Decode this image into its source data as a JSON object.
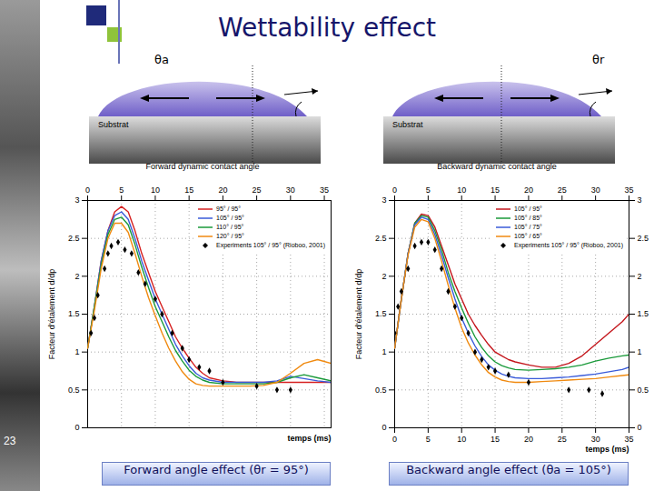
{
  "slide": {
    "title": "Wettability effect",
    "page_number": "23",
    "diagrams": [
      {
        "angle_label": "θa",
        "substrate": "Substrat",
        "caption": "Forward dynamic contact angle"
      },
      {
        "angle_label": "θr",
        "substrate": "Substrat",
        "caption": "Backward dynamic contact angle"
      }
    ]
  },
  "chart_data": [
    {
      "type": "line",
      "caption": "Forward angle effect  (θr = 95°)",
      "x_label": "temps (ms)",
      "y_label": "Facteur d'étalement d/dp",
      "xlim": [
        0,
        36
      ],
      "xticks": [
        0,
        5,
        10,
        15,
        20,
        25,
        30,
        35
      ],
      "ylim": [
        0,
        3
      ],
      "yticks": [
        0,
        0.5,
        1,
        1.5,
        2,
        2.5,
        3
      ],
      "grid": true,
      "legend": "upper right",
      "series": [
        {
          "name": "95° / 95°",
          "color": "#d62020",
          "type": "line",
          "x": [
            0,
            1,
            2,
            3,
            4,
            5,
            6,
            7,
            8,
            9,
            10,
            11,
            12,
            13,
            14,
            15,
            16,
            17,
            18,
            20,
            22,
            24,
            26,
            28,
            30,
            32,
            34,
            36
          ],
          "values": [
            1.05,
            1.6,
            2.2,
            2.6,
            2.85,
            2.92,
            2.85,
            2.6,
            2.3,
            2.05,
            1.8,
            1.6,
            1.4,
            1.2,
            1.05,
            0.92,
            0.8,
            0.72,
            0.66,
            0.62,
            0.6,
            0.6,
            0.6,
            0.6,
            0.6,
            0.6,
            0.6,
            0.6
          ]
        },
        {
          "name": "105° / 95°",
          "color": "#3a5bd9",
          "type": "line",
          "x": [
            0,
            1,
            2,
            3,
            4,
            5,
            6,
            7,
            8,
            9,
            10,
            11,
            12,
            13,
            14,
            15,
            16,
            17,
            18,
            20,
            22,
            24,
            26,
            28,
            30,
            32,
            34,
            36
          ],
          "values": [
            1.05,
            1.6,
            2.2,
            2.6,
            2.8,
            2.85,
            2.75,
            2.5,
            2.2,
            1.95,
            1.7,
            1.5,
            1.3,
            1.1,
            0.95,
            0.82,
            0.72,
            0.66,
            0.63,
            0.6,
            0.6,
            0.6,
            0.6,
            0.62,
            0.68,
            0.65,
            0.62,
            0.6
          ]
        },
        {
          "name": "110° / 95°",
          "color": "#1a9a3a",
          "type": "line",
          "x": [
            0,
            1,
            2,
            3,
            4,
            5,
            6,
            7,
            8,
            9,
            10,
            11,
            12,
            13,
            14,
            15,
            16,
            17,
            18,
            20,
            22,
            24,
            26,
            28,
            30,
            32,
            34,
            36
          ],
          "values": [
            1.05,
            1.6,
            2.15,
            2.55,
            2.75,
            2.78,
            2.68,
            2.42,
            2.12,
            1.85,
            1.6,
            1.4,
            1.2,
            1.02,
            0.88,
            0.76,
            0.68,
            0.63,
            0.6,
            0.58,
            0.58,
            0.58,
            0.58,
            0.6,
            0.66,
            0.7,
            0.66,
            0.62
          ]
        },
        {
          "name": "120° / 95°",
          "color": "#f08a10",
          "type": "line",
          "x": [
            0,
            1,
            2,
            3,
            4,
            5,
            6,
            7,
            8,
            9,
            10,
            11,
            12,
            13,
            14,
            15,
            16,
            17,
            18,
            20,
            22,
            24,
            26,
            28,
            30,
            32,
            34,
            36
          ],
          "values": [
            1.05,
            1.55,
            2.1,
            2.5,
            2.7,
            2.7,
            2.58,
            2.3,
            2.0,
            1.72,
            1.48,
            1.25,
            1.05,
            0.88,
            0.74,
            0.64,
            0.58,
            0.56,
            0.55,
            0.55,
            0.55,
            0.55,
            0.56,
            0.6,
            0.72,
            0.85,
            0.9,
            0.85
          ]
        },
        {
          "name": "Experiments 105° / 95° (Rioboo, 2001)",
          "color": "#000000",
          "type": "scatter",
          "marker": "diamond",
          "x": [
            0.5,
            1,
            1.5,
            2.5,
            3,
            3.5,
            4.5,
            5.5,
            6.5,
            7.5,
            8.5,
            10,
            11,
            12.5,
            14,
            15,
            16.5,
            18,
            20,
            25,
            28,
            30
          ],
          "values": [
            1.25,
            1.45,
            1.75,
            2.1,
            2.3,
            2.4,
            2.45,
            2.35,
            2.3,
            2.05,
            1.9,
            1.7,
            1.5,
            1.25,
            1.05,
            0.9,
            0.8,
            0.75,
            0.6,
            0.55,
            0.5,
            0.5
          ]
        }
      ]
    },
    {
      "type": "line",
      "caption": "Backward angle effect  (θa = 105°)",
      "x_label": "temps (ms)",
      "y_label": "Facteur d'étalement d/dp",
      "xlim": [
        0,
        35
      ],
      "xticks": [
        0,
        5,
        10,
        15,
        20,
        25,
        30,
        35
      ],
      "ylim": [
        0,
        3
      ],
      "yticks": [
        0,
        0.5,
        1,
        1.5,
        2,
        2.5,
        3
      ],
      "grid": true,
      "legend": "upper right",
      "series": [
        {
          "name": "105° / 95°",
          "color": "#c4161c",
          "type": "line",
          "x": [
            0,
            1,
            2,
            3,
            4,
            5,
            6,
            7,
            8,
            9,
            10,
            11,
            12,
            13,
            14,
            15,
            16,
            17,
            18,
            20,
            22,
            24,
            26,
            28,
            30,
            32,
            34,
            35
          ],
          "values": [
            1.05,
            1.7,
            2.3,
            2.7,
            2.82,
            2.8,
            2.65,
            2.4,
            2.15,
            1.9,
            1.7,
            1.5,
            1.35,
            1.22,
            1.1,
            1.0,
            0.95,
            0.9,
            0.87,
            0.83,
            0.8,
            0.8,
            0.85,
            0.95,
            1.1,
            1.25,
            1.4,
            1.5
          ]
        },
        {
          "name": "105° / 85°",
          "color": "#1a9a3a",
          "type": "line",
          "x": [
            0,
            1,
            2,
            3,
            4,
            5,
            6,
            7,
            8,
            9,
            10,
            11,
            12,
            13,
            14,
            15,
            16,
            17,
            18,
            20,
            22,
            24,
            26,
            28,
            30,
            32,
            34,
            35
          ],
          "values": [
            1.05,
            1.7,
            2.3,
            2.7,
            2.8,
            2.78,
            2.6,
            2.35,
            2.05,
            1.8,
            1.58,
            1.38,
            1.2,
            1.06,
            0.95,
            0.87,
            0.82,
            0.79,
            0.77,
            0.76,
            0.77,
            0.78,
            0.8,
            0.83,
            0.88,
            0.92,
            0.95,
            0.96
          ]
        },
        {
          "name": "105° / 75°",
          "color": "#3a5bd9",
          "type": "line",
          "x": [
            0,
            1,
            2,
            3,
            4,
            5,
            6,
            7,
            8,
            9,
            10,
            11,
            12,
            13,
            14,
            15,
            16,
            17,
            18,
            20,
            22,
            24,
            26,
            28,
            30,
            32,
            34,
            35
          ],
          "values": [
            1.05,
            1.7,
            2.3,
            2.68,
            2.78,
            2.75,
            2.55,
            2.28,
            1.98,
            1.7,
            1.45,
            1.25,
            1.08,
            0.94,
            0.83,
            0.76,
            0.71,
            0.68,
            0.66,
            0.65,
            0.65,
            0.66,
            0.67,
            0.69,
            0.71,
            0.74,
            0.77,
            0.8
          ]
        },
        {
          "name": "105° / 65°",
          "color": "#f08a10",
          "type": "line",
          "x": [
            0,
            1,
            2,
            3,
            4,
            5,
            6,
            7,
            8,
            9,
            10,
            11,
            12,
            13,
            14,
            15,
            16,
            17,
            18,
            20,
            22,
            24,
            26,
            28,
            30,
            32,
            34,
            35
          ],
          "values": [
            1.05,
            1.7,
            2.28,
            2.65,
            2.75,
            2.72,
            2.5,
            2.2,
            1.88,
            1.58,
            1.32,
            1.12,
            0.96,
            0.83,
            0.73,
            0.67,
            0.63,
            0.61,
            0.6,
            0.6,
            0.61,
            0.62,
            0.63,
            0.64,
            0.65,
            0.67,
            0.69,
            0.7
          ]
        },
        {
          "name": "Experiments 105° / 95° (Rioboo, 2001)",
          "color": "#000000",
          "type": "scatter",
          "marker": "diamond",
          "x": [
            0,
            0.5,
            1,
            2,
            3,
            4,
            5,
            6,
            7,
            8,
            9,
            10,
            11,
            12,
            13,
            14,
            15,
            17,
            20,
            26,
            29,
            31
          ],
          "values": [
            1.25,
            1.6,
            1.8,
            2.1,
            2.4,
            2.45,
            2.45,
            2.35,
            2.1,
            1.8,
            1.6,
            1.45,
            1.25,
            1.0,
            0.9,
            0.8,
            0.75,
            0.7,
            0.6,
            0.5,
            0.5,
            0.45
          ]
        }
      ]
    }
  ]
}
